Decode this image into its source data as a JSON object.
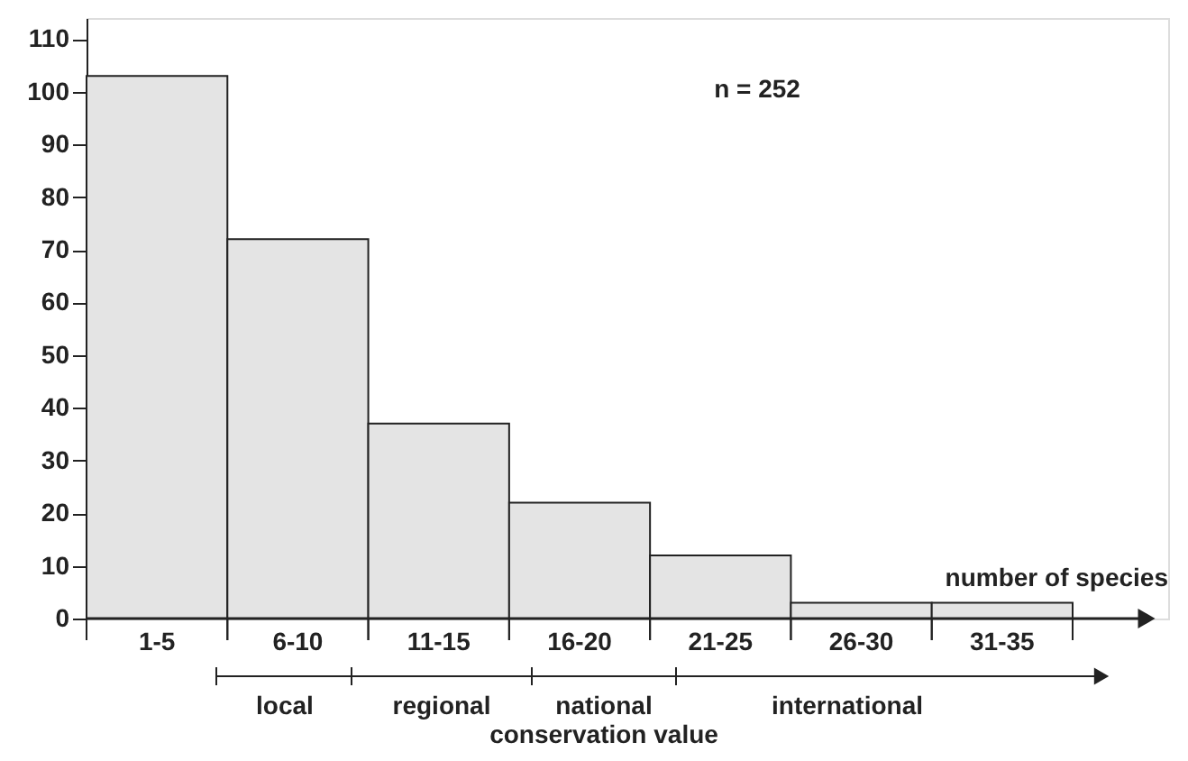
{
  "chart_data": {
    "type": "bar",
    "categories": [
      "1-5",
      "6-10",
      "11-15",
      "16-20",
      "21-25",
      "26-30",
      "31-35"
    ],
    "values": [
      103,
      72,
      37,
      22,
      12,
      3,
      3
    ],
    "color": "#e4e4e4",
    "xlabel": "number of species",
    "ylim": [
      0,
      114
    ],
    "yticks": [
      0,
      10,
      20,
      30,
      40,
      50,
      60,
      70,
      80,
      90,
      100,
      110
    ],
    "grid": false,
    "annotations": [
      "n = 252",
      "local",
      "regional",
      "national",
      "conservation value",
      "international"
    ]
  }
}
